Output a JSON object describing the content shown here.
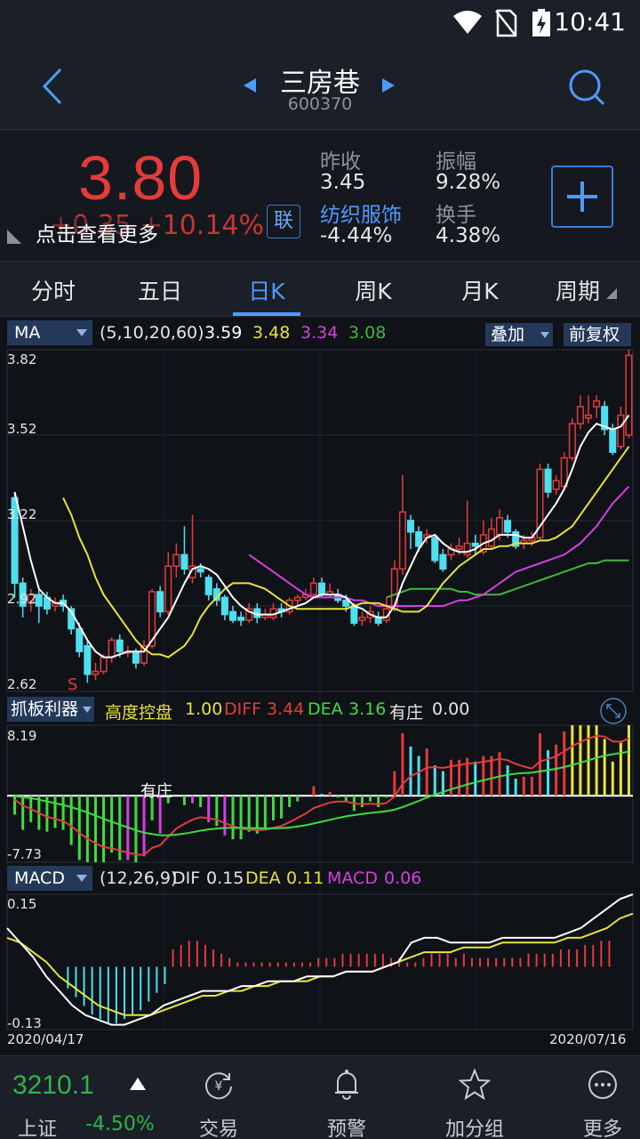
{
  "status": {
    "time": "10:41"
  },
  "header": {
    "name": "三房巷",
    "code": "600370"
  },
  "quote": {
    "price": "3.80",
    "change": "+0.35  +10.14%",
    "tip": "点击查看更多",
    "link_btn": "联",
    "prev_close_label": "昨收",
    "prev_close": "3.45",
    "amplitude_label": "振幅",
    "amplitude": "9.28%",
    "sector_label": "纺织服饰",
    "sector_change": "-4.44%",
    "turnover_label": "换手",
    "turnover": "4.38%"
  },
  "tabs": [
    "分时",
    "五日",
    "日K",
    "周K",
    "月K",
    "周期"
  ],
  "ma_bar": {
    "name": "MA",
    "params": "(5,10,20,60)",
    "ma5": "3.59",
    "ma10": "3.48",
    "ma20": "3.34",
    "ma60": "3.08",
    "overlay": "叠加",
    "adjust": "前复权",
    "y_labels": [
      "3.82",
      "3.52",
      "3.22",
      "2.92",
      "2.62"
    ]
  },
  "ind2_bar": {
    "name": "抓板利器",
    "t1": "高度控盘",
    "v1": "1.00",
    "t2": "DIFF",
    "v2": "3.44",
    "t3": "DEA",
    "v3": "3.16",
    "t4": "有庄",
    "v4": "0.00",
    "y_top": "8.19",
    "y_bot": "-7.73",
    "annotation": "有庄"
  },
  "macd_bar": {
    "name": "MACD",
    "params": "(12,26,9)",
    "dif_label": "DIF",
    "dif": "0.15",
    "dea_label": "DEA",
    "dea": "0.11",
    "macd_label": "MACD",
    "macd": "0.06",
    "y_top": "0.15",
    "y_bot": "-0.13"
  },
  "dates": {
    "start": "2020/04/17",
    "end": "2020/07/16"
  },
  "s_marker": "S",
  "colors": {
    "up": "#e53b3b",
    "down": "#4ee0f0",
    "ma5": "#ffffff",
    "ma10": "#e8e33a",
    "ma20": "#d63fe0",
    "ma60": "#3fb83f"
  },
  "chart_data": {
    "type": "candlestick",
    "x_range": [
      "2020/04/17",
      "2020/07/16"
    ],
    "ylim": [
      2.62,
      3.82
    ],
    "candles": [
      {
        "o": 3.3,
        "c": 3.0,
        "h": 3.32,
        "l": 2.95
      },
      {
        "o": 3.0,
        "c": 2.92,
        "h": 3.02,
        "l": 2.88
      },
      {
        "o": 2.93,
        "c": 2.96,
        "h": 2.98,
        "l": 2.9
      },
      {
        "o": 2.96,
        "c": 2.92,
        "h": 2.98,
        "l": 2.86
      },
      {
        "o": 2.95,
        "c": 2.91,
        "h": 2.97,
        "l": 2.89
      },
      {
        "o": 2.92,
        "c": 2.93,
        "h": 2.95,
        "l": 2.9
      },
      {
        "o": 2.94,
        "c": 2.92,
        "h": 2.96,
        "l": 2.9
      },
      {
        "o": 2.91,
        "c": 2.84,
        "h": 2.92,
        "l": 2.82
      },
      {
        "o": 2.84,
        "c": 2.76,
        "h": 2.86,
        "l": 2.74
      },
      {
        "o": 2.78,
        "c": 2.68,
        "h": 2.8,
        "l": 2.65
      },
      {
        "o": 2.68,
        "c": 2.69,
        "h": 2.72,
        "l": 2.66
      },
      {
        "o": 2.69,
        "c": 2.74,
        "h": 2.75,
        "l": 2.68
      },
      {
        "o": 2.74,
        "c": 2.8,
        "h": 2.81,
        "l": 2.72
      },
      {
        "o": 2.8,
        "c": 2.76,
        "h": 2.82,
        "l": 2.74
      },
      {
        "o": 2.76,
        "c": 2.76,
        "h": 2.78,
        "l": 2.74
      },
      {
        "o": 2.76,
        "c": 2.72,
        "h": 2.77,
        "l": 2.7
      },
      {
        "o": 2.72,
        "c": 2.78,
        "h": 2.8,
        "l": 2.71
      },
      {
        "o": 2.78,
        "c": 2.97,
        "h": 2.98,
        "l": 2.77
      },
      {
        "o": 2.97,
        "c": 2.9,
        "h": 2.99,
        "l": 2.88
      },
      {
        "o": 2.9,
        "c": 3.06,
        "h": 3.11,
        "l": 2.89
      },
      {
        "o": 3.06,
        "c": 3.1,
        "h": 3.14,
        "l": 3.02
      },
      {
        "o": 3.1,
        "c": 3.05,
        "h": 3.2,
        "l": 3.03
      },
      {
        "o": 3.02,
        "c": 3.06,
        "h": 3.24,
        "l": 3.0
      },
      {
        "o": 3.05,
        "c": 3.04,
        "h": 3.07,
        "l": 3.02
      },
      {
        "o": 3.02,
        "c": 2.96,
        "h": 3.03,
        "l": 2.94
      },
      {
        "o": 2.98,
        "c": 2.94,
        "h": 3.0,
        "l": 2.92
      },
      {
        "o": 2.95,
        "c": 2.89,
        "h": 2.96,
        "l": 2.87
      },
      {
        "o": 2.9,
        "c": 2.87,
        "h": 2.92,
        "l": 2.86
      },
      {
        "o": 2.88,
        "c": 2.87,
        "h": 2.9,
        "l": 2.85
      },
      {
        "o": 2.87,
        "c": 2.91,
        "h": 2.93,
        "l": 2.86
      },
      {
        "o": 2.91,
        "c": 2.88,
        "h": 2.93,
        "l": 2.86
      },
      {
        "o": 2.88,
        "c": 2.89,
        "h": 2.91,
        "l": 2.87
      },
      {
        "o": 2.88,
        "c": 2.91,
        "h": 2.93,
        "l": 2.87
      },
      {
        "o": 2.91,
        "c": 2.9,
        "h": 2.93,
        "l": 2.88
      },
      {
        "o": 2.9,
        "c": 2.94,
        "h": 2.95,
        "l": 2.89
      },
      {
        "o": 2.94,
        "c": 2.95,
        "h": 2.96,
        "l": 2.92
      },
      {
        "o": 2.95,
        "c": 2.96,
        "h": 2.98,
        "l": 2.94
      },
      {
        "o": 2.96,
        "c": 3.0,
        "h": 3.02,
        "l": 2.95
      },
      {
        "o": 3.0,
        "c": 2.96,
        "h": 3.02,
        "l": 2.95
      },
      {
        "o": 2.96,
        "c": 2.97,
        "h": 3.0,
        "l": 2.95
      },
      {
        "o": 2.96,
        "c": 2.94,
        "h": 2.98,
        "l": 2.93
      },
      {
        "o": 2.94,
        "c": 2.92,
        "h": 2.96,
        "l": 2.9
      },
      {
        "o": 2.92,
        "c": 2.86,
        "h": 2.93,
        "l": 2.85
      },
      {
        "o": 2.87,
        "c": 2.88,
        "h": 2.9,
        "l": 2.85
      },
      {
        "o": 2.88,
        "c": 2.9,
        "h": 2.92,
        "l": 2.86
      },
      {
        "o": 2.88,
        "c": 2.86,
        "h": 2.9,
        "l": 2.85
      },
      {
        "o": 2.87,
        "c": 2.91,
        "h": 2.95,
        "l": 2.86
      },
      {
        "o": 2.91,
        "c": 3.05,
        "h": 3.08,
        "l": 2.9
      },
      {
        "o": 3.05,
        "c": 3.25,
        "h": 3.38,
        "l": 3.03
      },
      {
        "o": 3.22,
        "c": 3.18,
        "h": 3.24,
        "l": 3.12
      },
      {
        "o": 3.18,
        "c": 3.13,
        "h": 3.2,
        "l": 3.11
      },
      {
        "o": 3.16,
        "c": 3.17,
        "h": 3.19,
        "l": 3.14
      },
      {
        "o": 3.16,
        "c": 3.08,
        "h": 3.17,
        "l": 3.07
      },
      {
        "o": 3.1,
        "c": 3.05,
        "h": 3.12,
        "l": 3.04
      },
      {
        "o": 3.1,
        "c": 3.12,
        "h": 3.14,
        "l": 3.08
      },
      {
        "o": 3.12,
        "c": 3.13,
        "h": 3.16,
        "l": 3.1
      },
      {
        "o": 3.1,
        "c": 3.14,
        "h": 3.29,
        "l": 3.09
      },
      {
        "o": 3.14,
        "c": 3.13,
        "h": 3.17,
        "l": 3.1
      },
      {
        "o": 3.11,
        "c": 3.17,
        "h": 3.22,
        "l": 3.1
      },
      {
        "o": 3.13,
        "c": 3.19,
        "h": 3.23,
        "l": 3.12
      },
      {
        "o": 3.17,
        "c": 3.23,
        "h": 3.26,
        "l": 3.15
      },
      {
        "o": 3.22,
        "c": 3.18,
        "h": 3.24,
        "l": 3.16
      },
      {
        "o": 3.18,
        "c": 3.13,
        "h": 3.19,
        "l": 3.12
      },
      {
        "o": 3.14,
        "c": 3.15,
        "h": 3.17,
        "l": 3.12
      },
      {
        "o": 3.15,
        "c": 3.16,
        "h": 3.18,
        "l": 3.13
      },
      {
        "o": 3.16,
        "c": 3.4,
        "h": 3.42,
        "l": 3.15
      },
      {
        "o": 3.4,
        "c": 3.32,
        "h": 3.42,
        "l": 3.3
      },
      {
        "o": 3.33,
        "c": 3.36,
        "h": 3.38,
        "l": 3.31
      },
      {
        "o": 3.34,
        "c": 3.44,
        "h": 3.46,
        "l": 3.33
      },
      {
        "o": 3.44,
        "c": 3.56,
        "h": 3.58,
        "l": 3.43
      },
      {
        "o": 3.56,
        "c": 3.62,
        "h": 3.66,
        "l": 3.54
      },
      {
        "o": 3.58,
        "c": 3.59,
        "h": 3.66,
        "l": 3.56
      },
      {
        "o": 3.62,
        "c": 3.64,
        "h": 3.66,
        "l": 3.58
      },
      {
        "o": 3.62,
        "c": 3.54,
        "h": 3.64,
        "l": 3.52
      },
      {
        "o": 3.54,
        "c": 3.46,
        "h": 3.56,
        "l": 3.45
      },
      {
        "o": 3.48,
        "c": 3.59,
        "h": 3.62,
        "l": 3.47
      },
      {
        "o": 3.52,
        "c": 3.8,
        "h": 3.82,
        "l": 3.51
      }
    ],
    "ma5": [
      3.32,
      3.2,
      3.08,
      2.98,
      2.95,
      2.93,
      2.93,
      2.9,
      2.85,
      2.8,
      2.76,
      2.74,
      2.74,
      2.75,
      2.76,
      2.76,
      2.76,
      2.8,
      2.84,
      2.88,
      2.94,
      3.0,
      3.05,
      3.06,
      3.05,
      3.03,
      2.99,
      2.95,
      2.92,
      2.9,
      2.89,
      2.89,
      2.89,
      2.9,
      2.91,
      2.92,
      2.93,
      2.95,
      2.96,
      2.96,
      2.96,
      2.95,
      2.92,
      2.91,
      2.89,
      2.88,
      2.88,
      2.92,
      3.0,
      3.06,
      3.12,
      3.16,
      3.17,
      3.14,
      3.12,
      3.11,
      3.11,
      3.12,
      3.14,
      3.15,
      3.17,
      3.17,
      3.17,
      3.16,
      3.16,
      3.2,
      3.24,
      3.28,
      3.33,
      3.4,
      3.48,
      3.53,
      3.56,
      3.55,
      3.54,
      3.55,
      3.59
    ],
    "ma10": [
      3.3,
      3.24,
      3.16,
      3.1,
      3.02,
      2.96,
      2.92,
      2.88,
      2.84,
      2.8,
      2.77,
      2.75,
      2.75,
      2.74,
      2.76,
      2.78,
      2.82,
      2.88,
      2.92,
      2.95,
      2.98,
      3.0,
      3.0,
      3.0,
      2.99,
      2.98,
      2.96,
      2.94,
      2.92,
      2.91,
      2.91,
      2.91,
      2.91,
      2.91,
      2.91,
      2.91,
      2.92,
      2.93,
      2.93,
      2.93,
      2.92,
      2.91,
      2.9,
      2.9,
      2.9,
      2.92,
      2.96,
      3.0,
      3.03,
      3.06,
      3.08,
      3.1,
      3.12,
      3.12,
      3.13,
      3.13,
      3.14,
      3.14,
      3.14,
      3.15,
      3.15,
      3.16,
      3.18,
      3.2,
      3.24,
      3.28,
      3.32,
      3.36,
      3.4,
      3.44,
      3.48
    ],
    "ma20": [
      3.1,
      3.08,
      3.06,
      3.04,
      3.02,
      3.0,
      2.98,
      2.96,
      2.95,
      2.95,
      2.95,
      2.95,
      2.95,
      2.94,
      2.94,
      2.93,
      2.92,
      2.92,
      2.92,
      2.92,
      2.92,
      2.92,
      2.92,
      2.92,
      2.92,
      2.93,
      2.94,
      2.94,
      2.95,
      2.96,
      2.98,
      3.0,
      3.02,
      3.04,
      3.05,
      3.06,
      3.07,
      3.08,
      3.09,
      3.1,
      3.12,
      3.14,
      3.17,
      3.2,
      3.24,
      3.28,
      3.31,
      3.34
    ],
    "ma60": [
      2.95,
      2.96,
      2.97,
      2.98,
      2.98,
      2.98,
      2.98,
      2.98,
      2.98,
      2.97,
      2.97,
      2.96,
      2.96,
      2.96,
      2.96,
      2.97,
      2.98,
      2.99,
      3.0,
      3.01,
      3.02,
      3.03,
      3.04,
      3.05,
      3.06,
      3.07,
      3.07,
      3.08,
      3.08,
      3.08,
      3.08
    ],
    "macd_histogram": [
      -0.05,
      -0.07,
      -0.09,
      -0.11,
      -0.12,
      -0.13,
      -0.13,
      -0.12,
      -0.11,
      -0.1,
      -0.08,
      -0.06,
      -0.04,
      0.04,
      0.05,
      0.06,
      0.06,
      0.05,
      0.04,
      0.03,
      0.02,
      0.01,
      0.01,
      0.01,
      0.01,
      0.01,
      0.01,
      0.01,
      0.01,
      0.01,
      0.01,
      0.02,
      0.02,
      0.02,
      0.03,
      0.03,
      0.03,
      0.03,
      0.03,
      0.03,
      0.02,
      0.02,
      0.01,
      0.01,
      0.02,
      0.03,
      0.03,
      0.03,
      0.02,
      0.03,
      0.02,
      0.02,
      0.02,
      0.02,
      0.02,
      0.02,
      0.02,
      0.03,
      0.03,
      0.03,
      0.03,
      0.04,
      0.04,
      0.04,
      0.05,
      0.05,
      0.06,
      0.06
    ],
    "dif": [
      0.08,
      0.05,
      0.02,
      -0.02,
      -0.05,
      -0.08,
      -0.1,
      -0.11,
      -0.12,
      -0.12,
      -0.11,
      -0.1,
      -0.08,
      -0.07,
      -0.06,
      -0.05,
      -0.05,
      -0.05,
      -0.04,
      -0.04,
      -0.03,
      -0.03,
      -0.03,
      -0.02,
      -0.02,
      -0.02,
      -0.01,
      -0.01,
      -0.01,
      0.0,
      0.01,
      0.05,
      0.06,
      0.06,
      0.05,
      0.05,
      0.05,
      0.05,
      0.06,
      0.06,
      0.06,
      0.06,
      0.06,
      0.07,
      0.08,
      0.1,
      0.12,
      0.14,
      0.15
    ],
    "dea": [
      0.06,
      0.05,
      0.03,
      0.01,
      -0.02,
      -0.04,
      -0.06,
      -0.08,
      -0.09,
      -0.1,
      -0.1,
      -0.1,
      -0.09,
      -0.08,
      -0.07,
      -0.06,
      -0.06,
      -0.05,
      -0.05,
      -0.04,
      -0.04,
      -0.03,
      -0.03,
      -0.03,
      -0.02,
      -0.02,
      -0.01,
      -0.01,
      -0.01,
      0.0,
      0.01,
      0.02,
      0.03,
      0.03,
      0.03,
      0.04,
      0.04,
      0.04,
      0.05,
      0.05,
      0.05,
      0.05,
      0.05,
      0.06,
      0.06,
      0.07,
      0.08,
      0.1,
      0.11
    ],
    "ind2": {
      "ylim": [
        -7.73,
        8.19
      ]
    }
  }
}
